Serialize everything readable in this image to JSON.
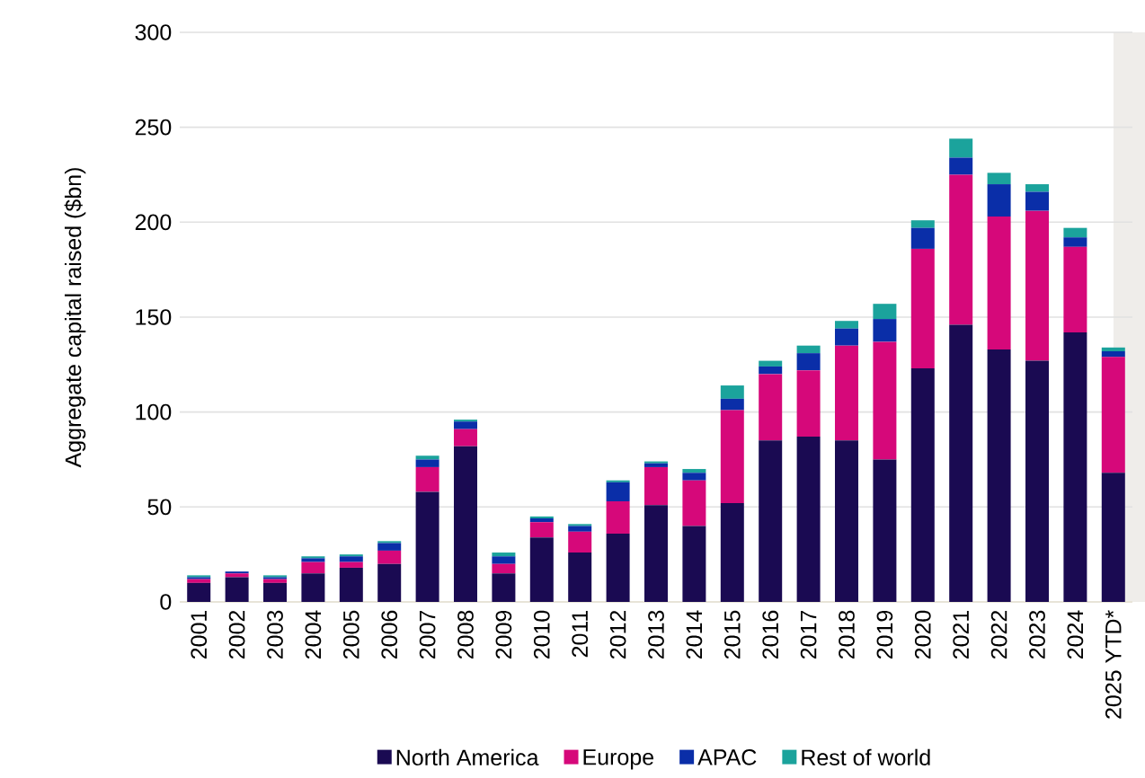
{
  "chart_data": {
    "type": "bar",
    "stacked": true,
    "ylabel": "Aggregate capital raised ($bn)",
    "categories": [
      "2001",
      "2002",
      "2003",
      "2004",
      "2005",
      "2006",
      "2007",
      "2008",
      "2009",
      "2010",
      "2011",
      "2012",
      "2013",
      "2014",
      "2015",
      "2016",
      "2017",
      "2018",
      "2019",
      "2020",
      "2021",
      "2022",
      "2023",
      "2024",
      "2025 YTD*"
    ],
    "series": [
      {
        "name": "North America",
        "color": "#1a0a52",
        "values": [
          10,
          13,
          10,
          15,
          18,
          20,
          58,
          82,
          15,
          34,
          26,
          36,
          51,
          40,
          52,
          85,
          87,
          85,
          75,
          123,
          146,
          133,
          127,
          142,
          68
        ]
      },
      {
        "name": "Europe",
        "color": "#d6087a",
        "values": [
          2,
          2,
          2,
          6,
          3,
          7,
          13,
          9,
          5,
          8,
          11,
          17,
          20,
          24,
          49,
          35,
          35,
          50,
          62,
          63,
          79,
          70,
          79,
          45,
          61
        ]
      },
      {
        "name": "APAC",
        "color": "#0a2ea8",
        "values": [
          1,
          1,
          1,
          2,
          3,
          4,
          4,
          4,
          4,
          2,
          3,
          10,
          2,
          4,
          6,
          4,
          9,
          9,
          12,
          11,
          9,
          17,
          10,
          5,
          3
        ]
      },
      {
        "name": "Rest of world",
        "color": "#1ba39c",
        "values": [
          1,
          0,
          1,
          1,
          1,
          1,
          2,
          1,
          2,
          1,
          1,
          1,
          1,
          2,
          7,
          3,
          4,
          4,
          8,
          4,
          10,
          6,
          4,
          5,
          2
        ]
      }
    ],
    "ylim": [
      0,
      300
    ],
    "yticks": [
      0,
      50,
      100,
      150,
      200,
      250,
      300
    ],
    "grid": "y",
    "legend": "bottom",
    "bands": [
      {
        "axis": "x",
        "from": "2025 YTD*",
        "to": "2025 YTD*",
        "color": "#efedea"
      }
    ]
  }
}
